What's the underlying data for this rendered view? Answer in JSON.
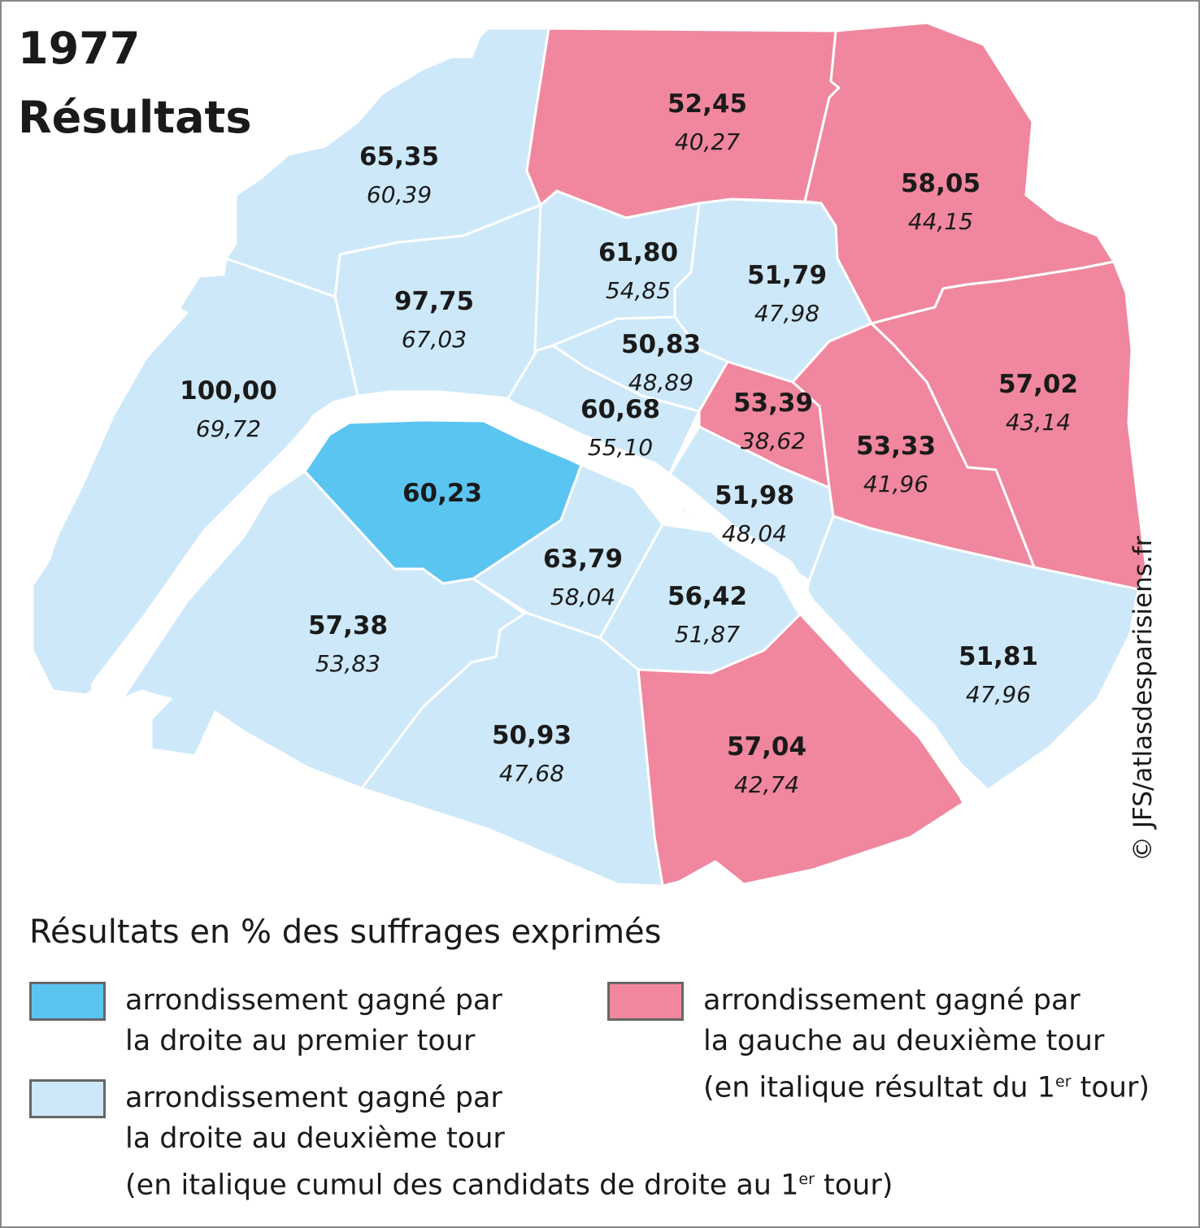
{
  "title": {
    "line1": "1977",
    "line2": "Résultats"
  },
  "colors": {
    "droite_premier_tour": "#5bc5f2",
    "droite_deuxieme_tour": "#cde8f9",
    "gauche_deuxieme_tour": "#f0879e",
    "border": "#ffffff"
  },
  "arrondissements": [
    {
      "id": "1",
      "category": "droite_deuxieme_tour",
      "value": "60,68",
      "first_round": "55,10"
    },
    {
      "id": "2",
      "category": "droite_deuxieme_tour",
      "value": "50,83",
      "first_round": "48,89"
    },
    {
      "id": "3",
      "category": "gauche_deuxieme_tour",
      "value": "53,39",
      "first_round": "38,62"
    },
    {
      "id": "4",
      "category": "droite_deuxieme_tour",
      "value": "51,98",
      "first_round": "48,04"
    },
    {
      "id": "5",
      "category": "droite_deuxieme_tour",
      "value": "56,42",
      "first_round": "51,87"
    },
    {
      "id": "6",
      "category": "droite_deuxieme_tour",
      "value": "63,79",
      "first_round": "58,04"
    },
    {
      "id": "7",
      "category": "droite_premier_tour",
      "value": "60,23",
      "first_round": ""
    },
    {
      "id": "8",
      "category": "droite_deuxieme_tour",
      "value": "97,75",
      "first_round": "67,03"
    },
    {
      "id": "9",
      "category": "droite_deuxieme_tour",
      "value": "61,80",
      "first_round": "54,85"
    },
    {
      "id": "10",
      "category": "droite_deuxieme_tour",
      "value": "51,79",
      "first_round": "47,98"
    },
    {
      "id": "11",
      "category": "gauche_deuxieme_tour",
      "value": "53,33",
      "first_round": "41,96"
    },
    {
      "id": "12",
      "category": "droite_deuxieme_tour",
      "value": "51,81",
      "first_round": "47,96"
    },
    {
      "id": "13",
      "category": "gauche_deuxieme_tour",
      "value": "57,04",
      "first_round": "42,74"
    },
    {
      "id": "14",
      "category": "droite_deuxieme_tour",
      "value": "50,93",
      "first_round": "47,68"
    },
    {
      "id": "15",
      "category": "droite_deuxieme_tour",
      "value": "57,38",
      "first_round": "53,83"
    },
    {
      "id": "16",
      "category": "droite_deuxieme_tour",
      "value": "100,00",
      "first_round": "69,72"
    },
    {
      "id": "17",
      "category": "droite_deuxieme_tour",
      "value": "65,35",
      "first_round": "60,39"
    },
    {
      "id": "18",
      "category": "gauche_deuxieme_tour",
      "value": "52,45",
      "first_round": "40,27"
    },
    {
      "id": "19",
      "category": "gauche_deuxieme_tour",
      "value": "58,05",
      "first_round": "44,15"
    },
    {
      "id": "20",
      "category": "gauche_deuxieme_tour",
      "value": "57,02",
      "first_round": "43,14"
    }
  ],
  "legend": {
    "title": "Résultats en % des suffrages exprimés",
    "droite_premier_tour": {
      "line1": "arrondissement gagné par",
      "line2": "la droite au premier tour"
    },
    "droite_deuxieme_tour": {
      "line1": "arrondissement gagné par",
      "line2": "la droite au deuxième tour",
      "line3_pre": "(en italique cumul des candidats de droite au 1",
      "line3_sup": "er",
      "line3_post": " tour)"
    },
    "gauche_deuxieme_tour": {
      "line1": "arrondissement gagné par",
      "line2": "la gauche au deuxième tour",
      "line3_pre": "(en italique résultat du 1",
      "line3_sup": "er",
      "line3_post": " tour)"
    }
  },
  "credit": "© JFS/atlasdesparisiens.fr"
}
